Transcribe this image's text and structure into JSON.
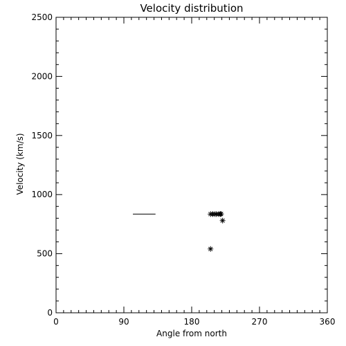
{
  "chart_data": {
    "type": "scatter",
    "title": "Velocity distribution",
    "xlabel": "Angle from north",
    "ylabel": "Velocity (km/s)",
    "xlim": [
      0,
      360
    ],
    "ylim": [
      0,
      2500
    ],
    "xticks": [
      0,
      90,
      180,
      270,
      360
    ],
    "yticks": [
      0,
      500,
      1000,
      1500,
      2000,
      2500
    ],
    "grid": false,
    "series": [
      {
        "marker": "asterisk",
        "points": [
          [
            205,
            835
          ],
          [
            208,
            835
          ],
          [
            211,
            835
          ],
          [
            213,
            835
          ],
          [
            216,
            835
          ],
          [
            218,
            835
          ],
          [
            219,
            836
          ],
          [
            221,
            780
          ],
          [
            205,
            540
          ]
        ]
      }
    ],
    "segments": [
      {
        "x": [
          102,
          132
        ],
        "y": 835
      }
    ]
  }
}
